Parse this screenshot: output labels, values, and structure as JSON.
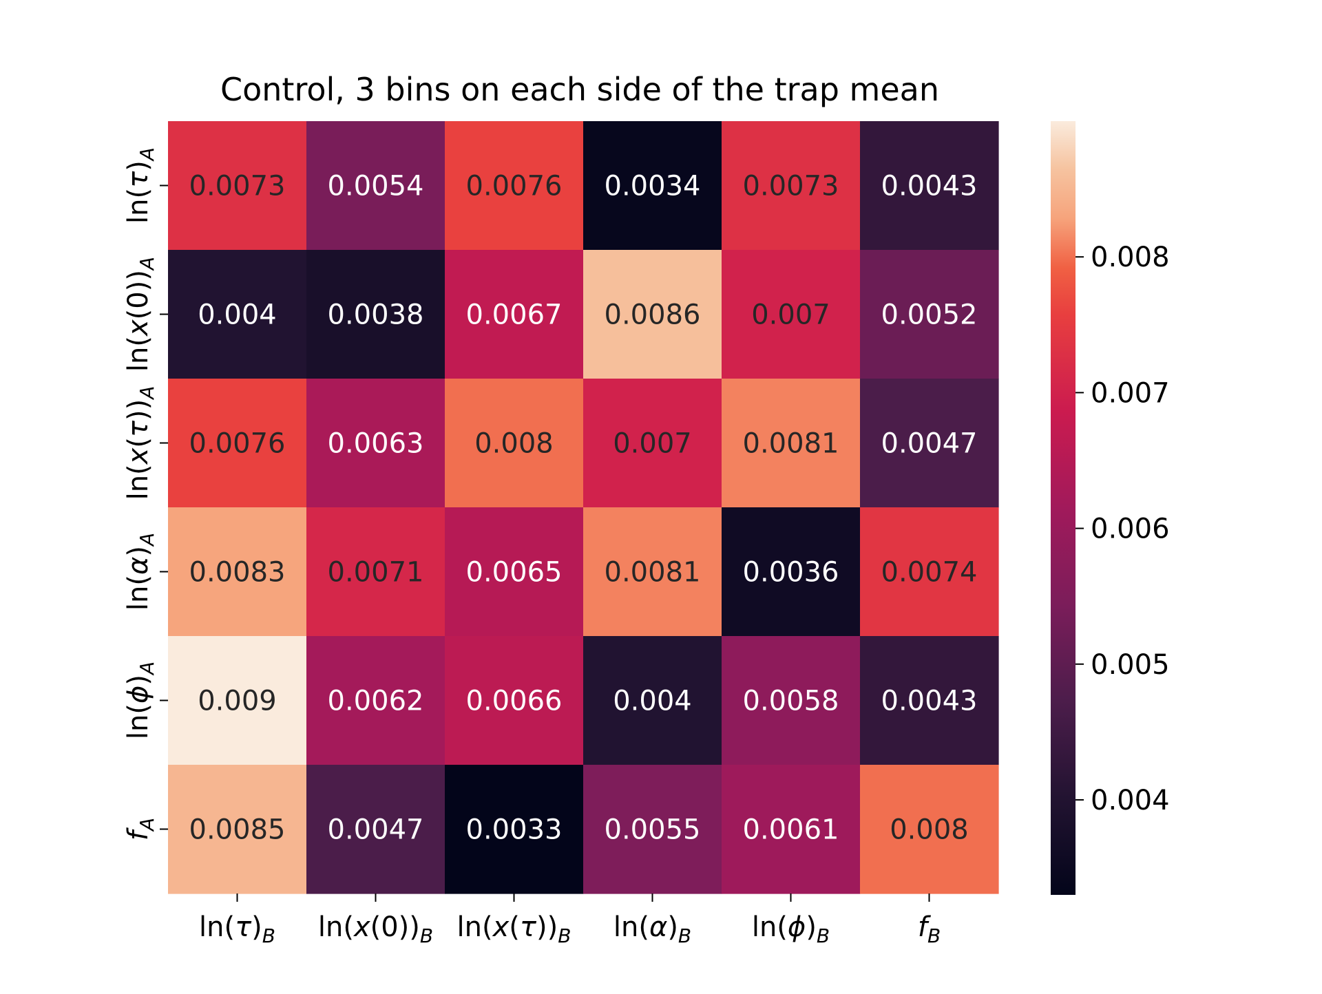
{
  "chart_data": {
    "type": "heatmap",
    "title": "Control, 3 bins on each side of the trap mean",
    "xlabel": "",
    "ylabel": "",
    "x_categories": [
      {
        "pre": "ln(",
        "var": "τ",
        "post": ")",
        "sub": "B"
      },
      {
        "pre": "ln(",
        "var": "x",
        "post": "(0))",
        "sub": "B"
      },
      {
        "pre": "ln(",
        "var": "x",
        "mid": "(",
        "var2": "τ",
        "post": "))",
        "sub": "B"
      },
      {
        "pre": "ln(",
        "var": "α",
        "post": ")",
        "sub": "B"
      },
      {
        "pre": "ln(",
        "var": "ϕ",
        "post": ")",
        "sub": "B"
      },
      {
        "pre": "",
        "var": "f",
        "post": "",
        "sub": "B"
      }
    ],
    "y_categories": [
      {
        "pre": "ln(",
        "var": "τ",
        "post": ")",
        "sub": "A"
      },
      {
        "pre": "ln(",
        "var": "x",
        "post": "(0))",
        "sub": "A"
      },
      {
        "pre": "ln(",
        "var": "x",
        "mid": "(",
        "var2": "τ",
        "post": "))",
        "sub": "A"
      },
      {
        "pre": "ln(",
        "var": "α",
        "post": ")",
        "sub": "A"
      },
      {
        "pre": "ln(",
        "var": "ϕ",
        "post": ")",
        "sub": "A"
      },
      {
        "pre": "",
        "var": "f",
        "post": "",
        "sub": "A"
      }
    ],
    "values": [
      [
        "0.0073",
        "0.0054",
        "0.0076",
        "0.0034",
        "0.0073",
        "0.0043"
      ],
      [
        "0.004",
        "0.0038",
        "0.0067",
        "0.0086",
        "0.007",
        "0.0052"
      ],
      [
        "0.0076",
        "0.0063",
        "0.008",
        "0.007",
        "0.0081",
        "0.0047"
      ],
      [
        "0.0083",
        "0.0071",
        "0.0065",
        "0.0081",
        "0.0036",
        "0.0074"
      ],
      [
        "0.009",
        "0.0062",
        "0.0066",
        "0.004",
        "0.0058",
        "0.0043"
      ],
      [
        "0.0085",
        "0.0047",
        "0.0033",
        "0.0055",
        "0.0061",
        "0.008"
      ]
    ],
    "colorbar": {
      "range": [
        0.0033,
        0.009
      ],
      "ticks": [
        "0.004",
        "0.005",
        "0.006",
        "0.007",
        "0.008"
      ],
      "colormap": "rocket"
    },
    "grid": false,
    "legend": "colorbar-right"
  }
}
